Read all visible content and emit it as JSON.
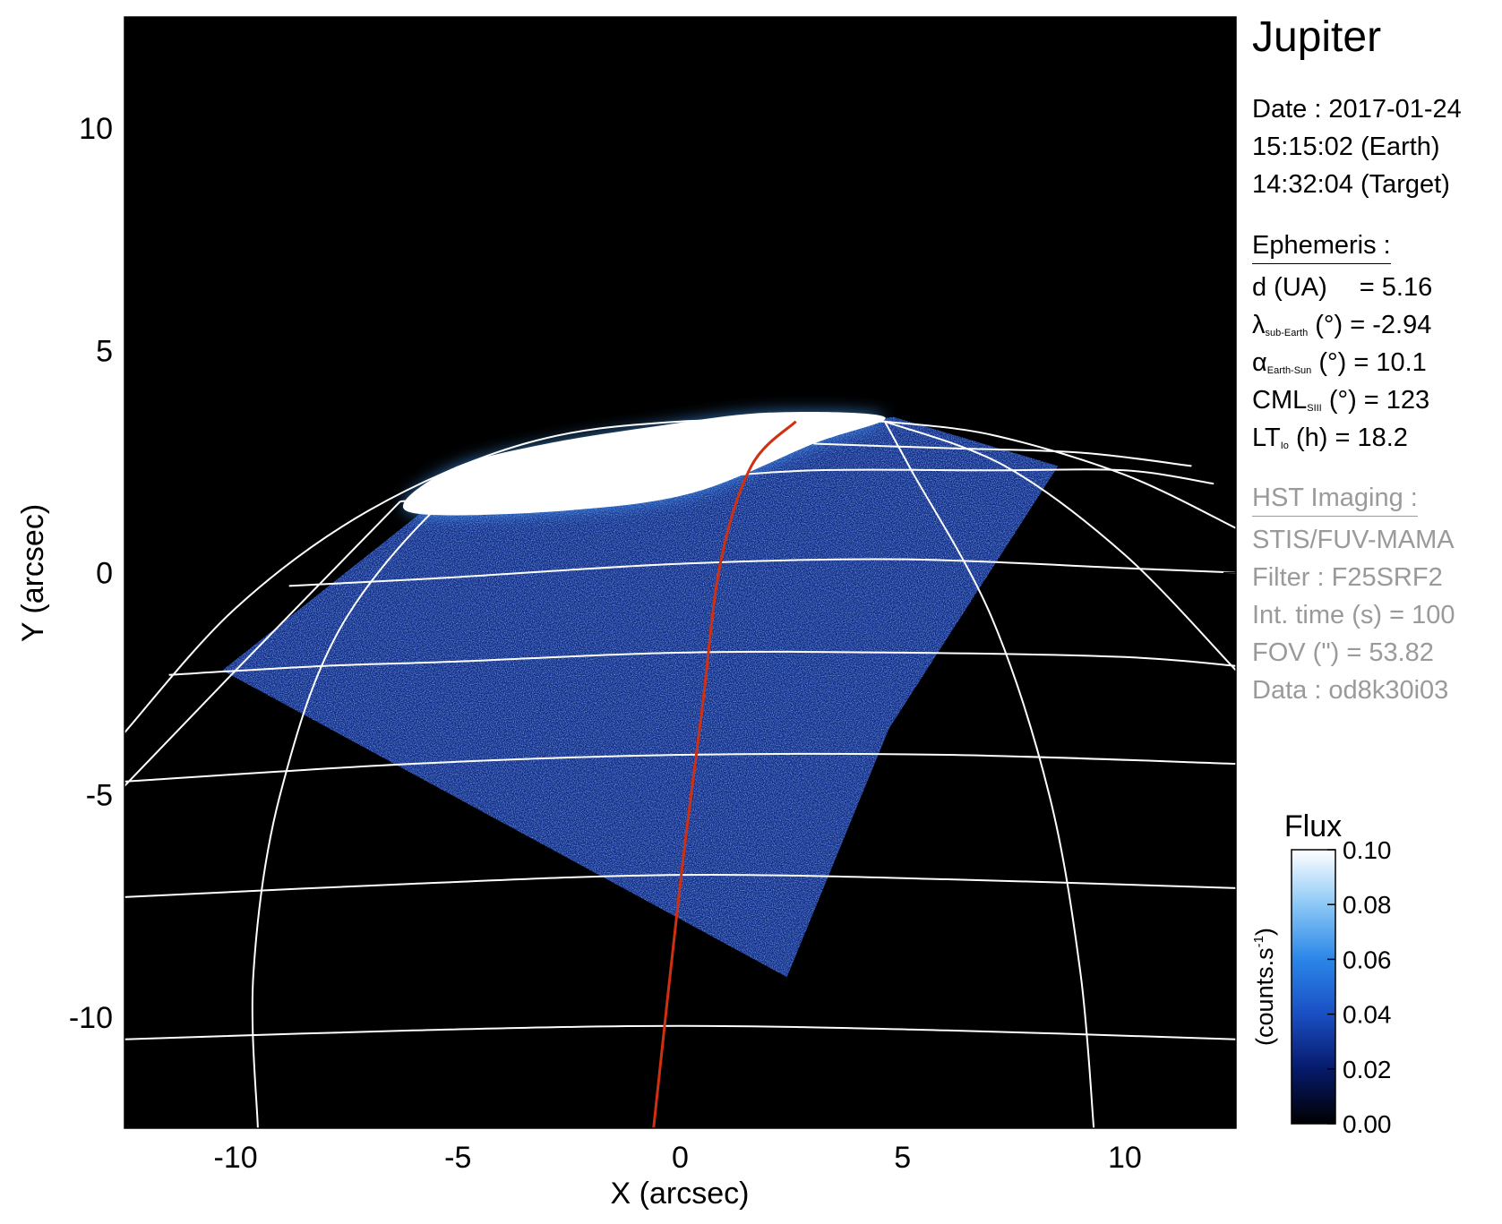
{
  "target": "Jupiter",
  "observation": {
    "date_line": "Date : 2017-01-24",
    "earth_time": "15:15:02 (Earth)",
    "target_time": "14:32:04 (Target)"
  },
  "ephemeris": {
    "header": "Ephemeris :",
    "d_label": "d (UA)",
    "d_value": "= 5.16",
    "lambda_symbol": "λ",
    "lambda_sub": "sub-Earth",
    "lambda_rest": "(°) = -2.94",
    "alpha_symbol": "α",
    "alpha_sub": "Earth-Sun",
    "alpha_rest": "(°) = 10.1",
    "cml_symbol": "CML",
    "cml_sub": "SIII",
    "cml_rest": "(°) = 123",
    "lt_symbol": "LT",
    "lt_sub": "Io",
    "lt_rest": "(h) = 18.2"
  },
  "imaging": {
    "header": "HST Imaging :",
    "instrument": "STIS/FUV-MAMA",
    "filter": "Filter : F25SRF2",
    "int_time": "Int. time (s) = 100",
    "fov": "FOV (\") = 53.82",
    "data_id": "Data : od8k30i03"
  },
  "colorbar": {
    "title": "Flux",
    "unit_label": "(counts.s",
    "unit_sup": "-1",
    "unit_close": ")",
    "ticks": [
      "0.10",
      "0.08",
      "0.06",
      "0.04",
      "0.02",
      "0.00"
    ],
    "range": [
      0.0,
      0.1
    ],
    "colors": [
      "#000000",
      "#061a6b",
      "#1a4fc4",
      "#2a86e8",
      "#8cc8f6",
      "#ffffff"
    ]
  },
  "chart_data": {
    "type": "heatmap",
    "xlabel": "X (arcsec)",
    "ylabel": "Y (arcsec)",
    "xlim": [
      -12.5,
      12.5
    ],
    "ylim": [
      -12.5,
      12.5
    ],
    "x_ticks": [
      "-10",
      "-5",
      "0",
      "5",
      "10"
    ],
    "x_tick_values": [
      -10,
      -5,
      0,
      5,
      10
    ],
    "y_ticks": [
      "10",
      "5",
      "0",
      "-5",
      "-10"
    ],
    "y_tick_values": [
      10,
      5,
      0,
      -5,
      -10
    ],
    "grid": "planetographic latitude/longitude grid (white)",
    "background_color": "#000000",
    "grid_color": "#ffffff",
    "io_footprint_color": "#d03010",
    "auroral_oval": [
      [
        -6.2,
        1.6
      ],
      [
        -5.0,
        2.4
      ],
      [
        -3.0,
        2.9
      ],
      [
        -0.5,
        3.3
      ],
      [
        2.0,
        3.6
      ],
      [
        4.6,
        3.5
      ],
      [
        3.0,
        2.9
      ],
      [
        0.3,
        1.8
      ],
      [
        -2.5,
        1.4
      ],
      [
        -5.6,
        1.3
      ]
    ],
    "io_footprint": [
      [
        2.6,
        3.4
      ],
      [
        1.6,
        2.4
      ],
      [
        0.9,
        0.2
      ],
      [
        0.5,
        -3.0
      ],
      [
        0.0,
        -7.0
      ],
      [
        -0.6,
        -12.5
      ]
    ],
    "latitude_lines": [
      [
        [
          -12.5,
          -10.5
        ],
        [
          -6,
          -10.3
        ],
        [
          0,
          -10.2
        ],
        [
          6,
          -10.3
        ],
        [
          12.5,
          -10.5
        ]
      ],
      [
        [
          -12.5,
          -7.3
        ],
        [
          -6,
          -7.0
        ],
        [
          0,
          -6.8
        ],
        [
          6,
          -6.9
        ],
        [
          12.5,
          -7.1
        ]
      ],
      [
        [
          -12.5,
          -4.7
        ],
        [
          -6,
          -4.3
        ],
        [
          0,
          -4.1
        ],
        [
          6,
          -4.1
        ],
        [
          12.5,
          -4.3
        ]
      ],
      [
        [
          -11.5,
          -2.3
        ],
        [
          -8,
          -2.1
        ],
        [
          -5,
          -2.0
        ],
        [
          0,
          -1.8
        ],
        [
          5,
          -1.8
        ],
        [
          10,
          -1.9
        ],
        [
          12.5,
          -2.1
        ]
      ],
      [
        [
          -8.8,
          -0.3
        ],
        [
          -5,
          -0.1
        ],
        [
          0,
          0.2
        ],
        [
          5,
          0.3
        ],
        [
          10,
          0.1
        ],
        [
          12.5,
          0.0
        ]
      ],
      [
        [
          -6.3,
          1.6
        ],
        [
          -3,
          1.9
        ],
        [
          0,
          2.1
        ],
        [
          3,
          2.3
        ],
        [
          7,
          2.3
        ],
        [
          10,
          2.3
        ],
        [
          12.0,
          2.0
        ]
      ],
      [
        [
          3.0,
          2.9
        ],
        [
          6,
          2.8
        ],
        [
          9,
          2.7
        ],
        [
          11.5,
          2.4
        ]
      ]
    ],
    "longitude_lines": [
      [
        [
          -9.5,
          -12.5
        ],
        [
          -9.6,
          -9
        ],
        [
          -9.0,
          -5
        ],
        [
          -7.5,
          -1
        ],
        [
          -4.5,
          2.3
        ],
        [
          -2.0,
          3.0
        ]
      ],
      [
        [
          -12.5,
          -3.6
        ],
        [
          -10,
          -0.8
        ],
        [
          -7,
          1.4
        ],
        [
          -3.5,
          2.9
        ],
        [
          0,
          3.4
        ],
        [
          4.6,
          3.4
        ]
      ],
      [
        [
          -12.5,
          -4.8
        ],
        [
          -10,
          -2.2
        ],
        [
          -6.3,
          1.6
        ]
      ],
      [
        [
          9.3,
          -12.5
        ],
        [
          9.0,
          -9
        ],
        [
          8.3,
          -5
        ],
        [
          7.0,
          -1
        ],
        [
          5.2,
          2.3
        ],
        [
          4.6,
          3.4
        ]
      ],
      [
        [
          4.6,
          3.4
        ],
        [
          7,
          3.1
        ],
        [
          10,
          2.2
        ],
        [
          12.5,
          1.0
        ]
      ],
      [
        [
          4.6,
          3.4
        ],
        [
          7.3,
          2.4
        ],
        [
          10,
          0.4
        ],
        [
          12.5,
          -2.2
        ]
      ]
    ],
    "image_region": [
      [
        -10.3,
        -2.2
      ],
      [
        -4.5,
        2.4
      ],
      [
        4.8,
        3.5
      ],
      [
        8.5,
        2.4
      ],
      [
        4.7,
        -3.5
      ],
      [
        2.4,
        -9.1
      ]
    ]
  }
}
